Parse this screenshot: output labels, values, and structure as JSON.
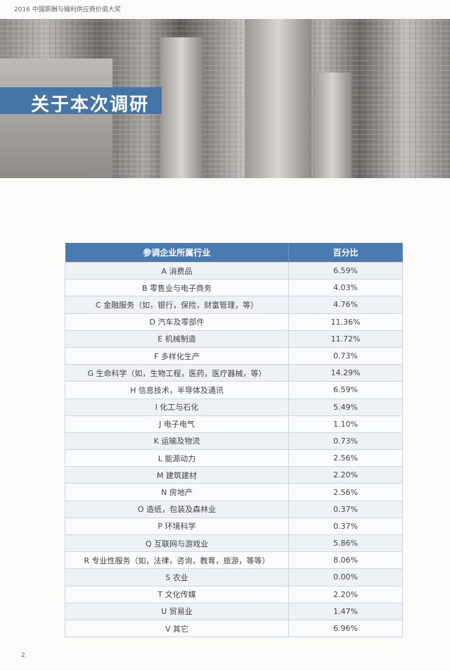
{
  "running_head": "2016 中国薪酬与福利供应商价值大奖",
  "section_title": "关于本次调研",
  "table": {
    "headers": [
      "参调企业所属行业",
      "百分比"
    ],
    "rows": [
      [
        "A 消费品",
        "6.59%"
      ],
      [
        "B 零售业与电子商务",
        "4.03%"
      ],
      [
        "C 金融服务（如，银行，保险，财富管理，等）",
        "4.76%"
      ],
      [
        "D 汽车及零部件",
        "11.36%"
      ],
      [
        "E 机械制造",
        "11.72%"
      ],
      [
        "F 多样化生产",
        "0.73%"
      ],
      [
        "G 生命科学（如，生物工程，医药，医疗器械，等）",
        "14.29%"
      ],
      [
        "H 信息技术，半导体及通讯",
        "6.59%"
      ],
      [
        "I 化工与石化",
        "5.49%"
      ],
      [
        "J 电子电气",
        "1.10%"
      ],
      [
        "K 运输及物流",
        "0.73%"
      ],
      [
        "L 能源动力",
        "2.56%"
      ],
      [
        "M 建筑建材",
        "2.20%"
      ],
      [
        "N 房地产",
        "2.56%"
      ],
      [
        "O 造纸，包装及森林业",
        "0.37%"
      ],
      [
        "P 环境科学",
        "0.37%"
      ],
      [
        "Q 互联网与游戏业",
        "5.86%"
      ],
      [
        "R 专业性服务（如，法律，咨询，教育，旅游，等等）",
        "8.06%"
      ],
      [
        "S 农业",
        "0.00%"
      ],
      [
        "T 文化传媒",
        "2.20%"
      ],
      [
        "U 贸易业",
        "1.47%"
      ],
      [
        "V 其它",
        "6.96%"
      ]
    ]
  },
  "page_number": "2",
  "colors": {
    "header": "#4a7bb0",
    "title_bar": "#3f73a8"
  }
}
